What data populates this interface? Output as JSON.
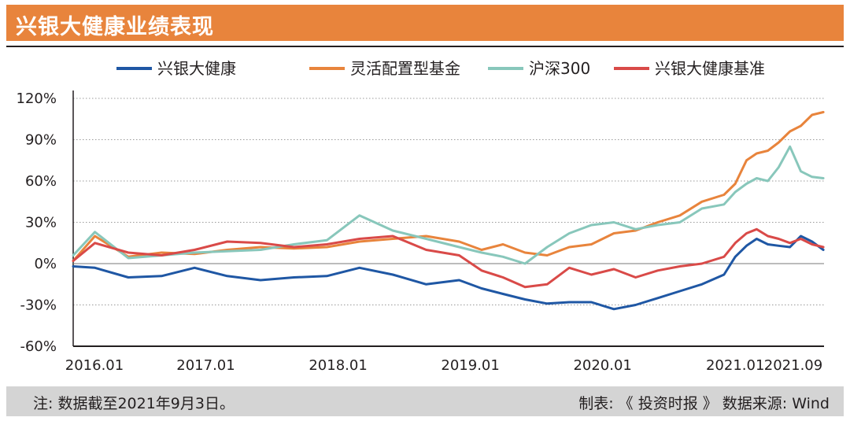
{
  "title": "兴银大健康业绩表现",
  "footer": {
    "note": "注: 数据截至2021年9月3日。",
    "source": "制表: 《 投资时报 》 数据来源: Wind"
  },
  "chart_data": {
    "type": "line",
    "ylim": [
      -60,
      120
    ],
    "yticks": [
      "120%",
      "90%",
      "60%",
      "30%",
      "0%",
      "-30%",
      "-60%"
    ],
    "ytick_values": [
      120,
      90,
      60,
      30,
      0,
      -30,
      -60
    ],
    "xticks": [
      "2016.01",
      "2017.01",
      "2018.01",
      "2019.01",
      "2020.01",
      "2021.01",
      "2021.09"
    ],
    "xtick_values": [
      "2016-01",
      "2017-01",
      "2018-01",
      "2019-01",
      "2020-01",
      "2021-01",
      "2021-09"
    ],
    "x": [
      "2016-01",
      "2016-03",
      "2016-06",
      "2016-09",
      "2016-12",
      "2017-03",
      "2017-06",
      "2017-09",
      "2017-12",
      "2018-03",
      "2018-06",
      "2018-09",
      "2018-12",
      "2019-02",
      "2019-04",
      "2019-06",
      "2019-08",
      "2019-10",
      "2019-12",
      "2020-02",
      "2020-04",
      "2020-06",
      "2020-08",
      "2020-10",
      "2020-12",
      "2021-01",
      "2021-02",
      "2021-03",
      "2021-04",
      "2021-05",
      "2021-06",
      "2021-07",
      "2021-08",
      "2021-09"
    ],
    "series": [
      {
        "name": "兴银大健康",
        "color": "#1f57a4",
        "values": [
          -2,
          -3,
          -10,
          -9,
          -3,
          -9,
          -12,
          -10,
          -9,
          -3,
          -8,
          -15,
          -12,
          -18,
          -22,
          -26,
          -29,
          -28,
          -28,
          -33,
          -30,
          -25,
          -20,
          -15,
          -8,
          5,
          13,
          18,
          14,
          13,
          12,
          20,
          16,
          10
        ]
      },
      {
        "name": "灵活配置型基金",
        "color": "#e8843c",
        "values": [
          2,
          20,
          5,
          8,
          7,
          10,
          12,
          11,
          12,
          16,
          18,
          20,
          16,
          10,
          14,
          8,
          6,
          12,
          14,
          22,
          24,
          30,
          35,
          45,
          50,
          58,
          75,
          80,
          82,
          88,
          96,
          100,
          108,
          110
        ]
      },
      {
        "name": "沪深300",
        "color": "#88c7bb",
        "values": [
          6,
          23,
          4,
          6,
          8,
          9,
          10,
          14,
          17,
          35,
          24,
          18,
          12,
          8,
          5,
          0,
          12,
          22,
          28,
          30,
          25,
          28,
          30,
          40,
          43,
          52,
          58,
          62,
          60,
          70,
          85,
          67,
          63,
          62
        ]
      },
      {
        "name": "兴银大健康基准",
        "color": "#d94a48",
        "values": [
          2,
          15,
          8,
          6,
          10,
          16,
          15,
          12,
          14,
          18,
          20,
          10,
          6,
          -5,
          -10,
          -17,
          -15,
          -3,
          -8,
          -4,
          -10,
          -5,
          -2,
          0,
          5,
          15,
          22,
          25,
          20,
          18,
          15,
          18,
          14,
          12
        ]
      }
    ]
  }
}
